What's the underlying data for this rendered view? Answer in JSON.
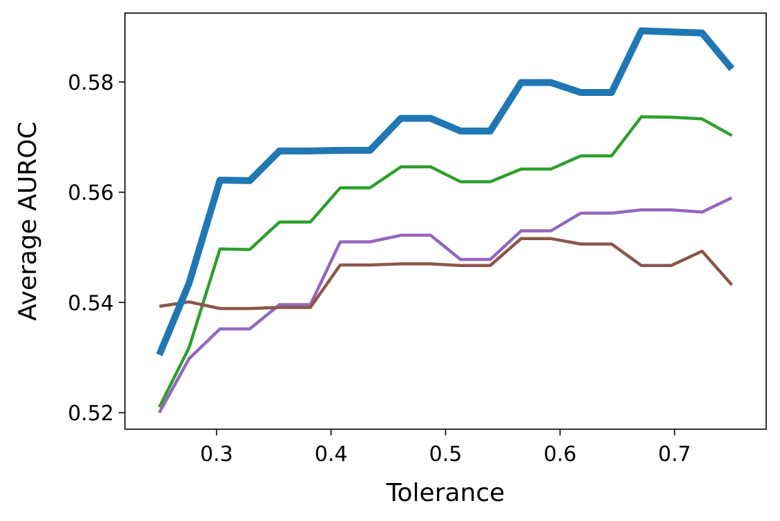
{
  "chart_data": {
    "type": "line",
    "title": "",
    "xlabel": "Tolerance",
    "ylabel": "Average AUROC",
    "xlim": [
      0.22,
      0.78
    ],
    "ylim": [
      0.517,
      0.5925
    ],
    "xticks": [
      0.3,
      0.4,
      0.5,
      0.6,
      0.7
    ],
    "xtick_labels": [
      "0.3",
      "0.4",
      "0.5",
      "0.6",
      "0.7"
    ],
    "yticks": [
      0.52,
      0.54,
      0.56,
      0.58
    ],
    "ytick_labels": [
      "0.52",
      "0.54",
      "0.56",
      "0.58"
    ],
    "grid": false,
    "legend": "none",
    "x": [
      0.25,
      0.276,
      0.303,
      0.329,
      0.355,
      0.382,
      0.408,
      0.434,
      0.461,
      0.487,
      0.513,
      0.539,
      0.566,
      0.592,
      0.618,
      0.645,
      0.671,
      0.697,
      0.724,
      0.75
    ],
    "series": [
      {
        "color": "#1f77b4",
        "emphasis": "thick",
        "values": [
          0.5305,
          0.5435,
          0.5622,
          0.5621,
          0.5675,
          0.5675,
          0.5676,
          0.5676,
          0.5734,
          0.5734,
          0.5711,
          0.5711,
          0.5799,
          0.5799,
          0.5781,
          0.5781,
          0.5893,
          0.5891,
          0.5889,
          0.5824
        ]
      },
      {
        "color": "#2ca02c",
        "emphasis": "normal",
        "values": [
          0.521,
          0.5318,
          0.5497,
          0.5496,
          0.5546,
          0.5546,
          0.5608,
          0.5608,
          0.5646,
          0.5646,
          0.5619,
          0.5619,
          0.5642,
          0.5642,
          0.5666,
          0.5666,
          0.5737,
          0.5736,
          0.5733,
          0.5703
        ]
      },
      {
        "color": "#9467bd",
        "emphasis": "normal",
        "values": [
          0.52,
          0.5298,
          0.5352,
          0.5352,
          0.5396,
          0.5396,
          0.551,
          0.551,
          0.5522,
          0.5522,
          0.5478,
          0.5478,
          0.553,
          0.553,
          0.5562,
          0.5562,
          0.5568,
          0.5568,
          0.5564,
          0.559
        ]
      },
      {
        "color": "#8c564b",
        "emphasis": "normal",
        "values": [
          0.5393,
          0.5401,
          0.5389,
          0.5389,
          0.5391,
          0.5391,
          0.5468,
          0.5468,
          0.547,
          0.547,
          0.5467,
          0.5467,
          0.5516,
          0.5516,
          0.5506,
          0.5506,
          0.5467,
          0.5467,
          0.5493,
          0.5432
        ]
      }
    ]
  }
}
